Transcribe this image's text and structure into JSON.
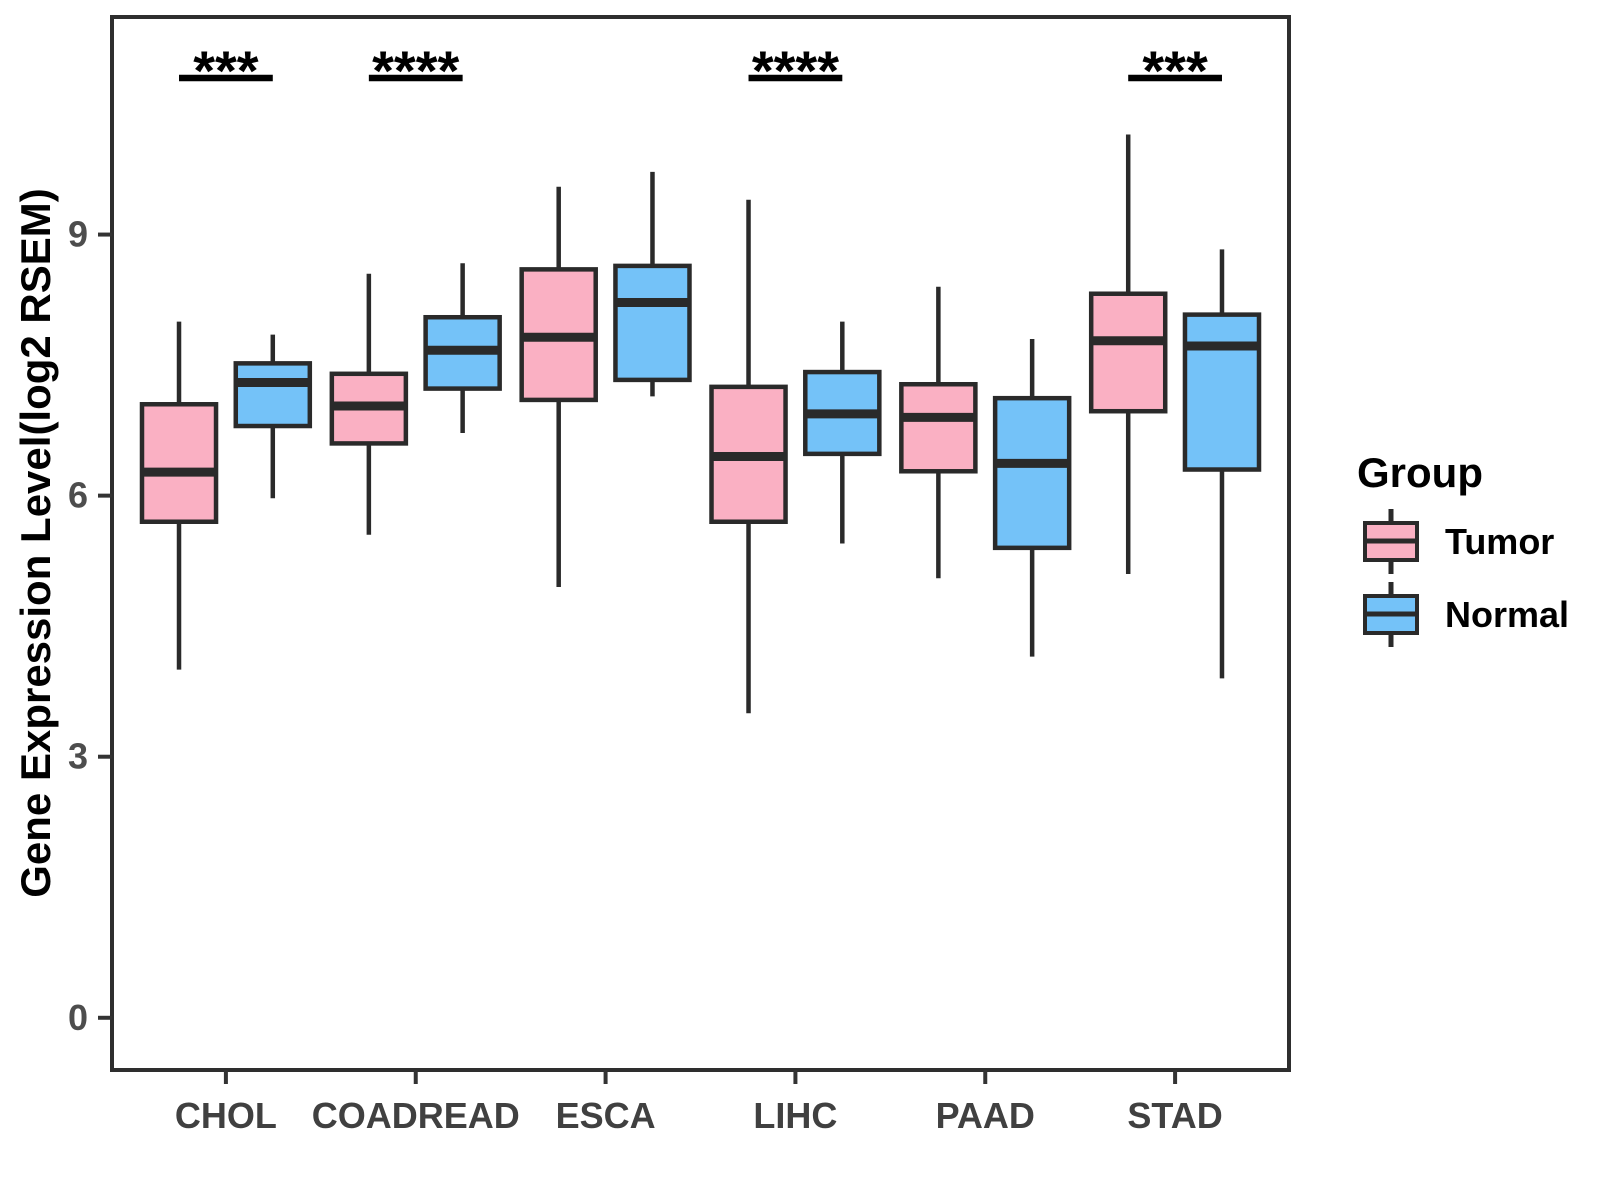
{
  "figure": {
    "background": "#ffffff",
    "box_stroke_color": "#2a2a2a",
    "tick_label_color": "#4d4d4d",
    "panel_border_color": "#2e2e2e"
  },
  "chart_data": {
    "type": "boxplot",
    "title": "",
    "xlabel": "",
    "ylabel": "Gene Expression Level(log2 RSEM)",
    "categories": [
      "CHOL",
      "COADREAD",
      "ESCA",
      "LIHC",
      "PAAD",
      "STAD"
    ],
    "yticks": [
      0,
      3,
      6,
      9
    ],
    "ylim": [
      -0.6,
      11.5
    ],
    "grid": false,
    "legend": {
      "title": "Group",
      "position": "right"
    },
    "groups": [
      {
        "name": "Tumor",
        "color": "#FAB0C3"
      },
      {
        "name": "Normal",
        "color": "#74C2F8"
      }
    ],
    "series": [
      {
        "name": "Tumor",
        "boxes": [
          {
            "category": "CHOL",
            "min": 4.0,
            "q1": 5.7,
            "median": 6.27,
            "q3": 7.05,
            "max": 8.0
          },
          {
            "category": "COADREAD",
            "min": 5.55,
            "q1": 6.6,
            "median": 7.03,
            "q3": 7.4,
            "max": 8.55
          },
          {
            "category": "ESCA",
            "min": 4.95,
            "q1": 7.1,
            "median": 7.82,
            "q3": 8.6,
            "max": 9.55
          },
          {
            "category": "LIHC",
            "min": 3.5,
            "q1": 5.7,
            "median": 6.45,
            "q3": 7.25,
            "max": 9.4
          },
          {
            "category": "PAAD",
            "min": 5.05,
            "q1": 6.28,
            "median": 6.9,
            "q3": 7.28,
            "max": 8.4
          },
          {
            "category": "STAD",
            "min": 5.1,
            "q1": 6.97,
            "median": 7.78,
            "q3": 8.32,
            "max": 10.15
          }
        ]
      },
      {
        "name": "Normal",
        "boxes": [
          {
            "category": "CHOL",
            "min": 5.97,
            "q1": 6.8,
            "median": 7.3,
            "q3": 7.52,
            "max": 7.85
          },
          {
            "category": "COADREAD",
            "min": 6.72,
            "q1": 7.23,
            "median": 7.67,
            "q3": 8.05,
            "max": 8.67
          },
          {
            "category": "ESCA",
            "min": 7.14,
            "q1": 7.33,
            "median": 8.22,
            "q3": 8.64,
            "max": 9.72
          },
          {
            "category": "LIHC",
            "min": 5.45,
            "q1": 6.48,
            "median": 6.94,
            "q3": 7.42,
            "max": 8.0
          },
          {
            "category": "PAAD",
            "min": 4.15,
            "q1": 5.4,
            "median": 6.37,
            "q3": 7.12,
            "max": 7.8
          },
          {
            "category": "STAD",
            "min": 3.9,
            "q1": 6.3,
            "median": 7.72,
            "q3": 8.08,
            "max": 8.83
          }
        ]
      }
    ],
    "significance": [
      {
        "category": "CHOL",
        "label": "***"
      },
      {
        "category": "COADREAD",
        "label": "****"
      },
      {
        "category": "LIHC",
        "label": "****"
      },
      {
        "category": "STAD",
        "label": "***"
      }
    ]
  }
}
